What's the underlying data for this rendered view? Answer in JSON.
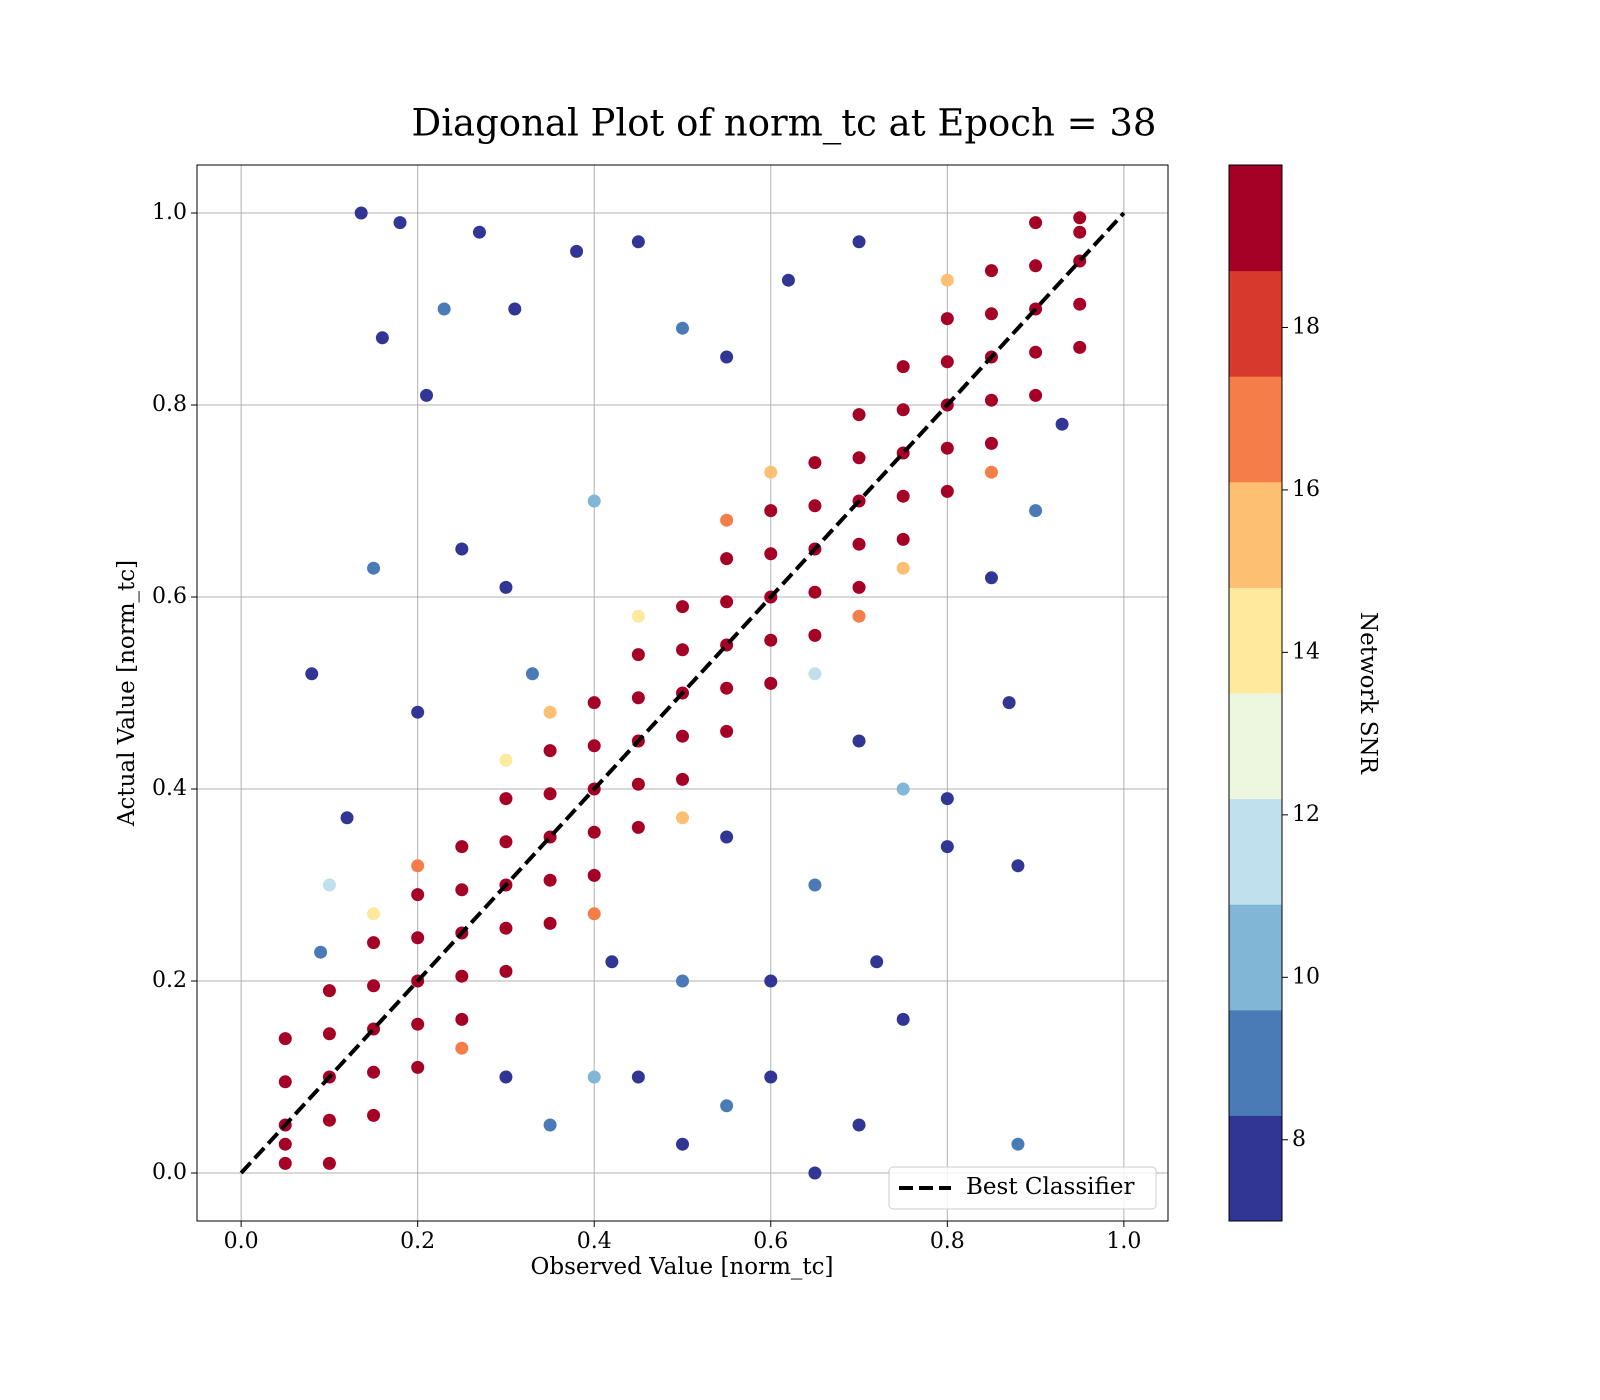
{
  "chart_data": {
    "type": "scatter",
    "title": "Diagonal Plot of norm_tc at Epoch = 38",
    "xlabel": "Observed Value [norm_tc]",
    "ylabel": "Actual Value [norm_tc]",
    "xlim": [
      -0.05,
      1.05
    ],
    "ylim": [
      -0.05,
      1.05
    ],
    "xticks": [
      {
        "value": 0,
        "label": "0.0"
      },
      {
        "value": 0.2,
        "label": "0.2"
      },
      {
        "value": 0.4,
        "label": "0.4"
      },
      {
        "value": 0.6,
        "label": "0.6"
      },
      {
        "value": 0.8,
        "label": "0.8"
      },
      {
        "value": 1,
        "label": "1.0"
      }
    ],
    "yticks": [
      {
        "value": 0,
        "label": "0.0"
      },
      {
        "value": 0.2,
        "label": "0.2"
      },
      {
        "value": 0.4,
        "label": "0.4"
      },
      {
        "value": 0.6,
        "label": "0.6"
      },
      {
        "value": 0.8,
        "label": "0.8"
      },
      {
        "value": 1,
        "label": "1.0"
      }
    ],
    "grid": true,
    "legend": "lower right",
    "series": [
      {
        "x": [
          0.136,
          0.18,
          0.21,
          0.16,
          0.23,
          0.08,
          0.15,
          0.27,
          0.31,
          0.38,
          0.45,
          0.5,
          0.33,
          0.4,
          0.55,
          0.62,
          0.7,
          0.3,
          0.2,
          0.12,
          0.1,
          0.09,
          0.25,
          0.45,
          0.5,
          0.55,
          0.6,
          0.65,
          0.7,
          0.75,
          0.8,
          0.88,
          0.88,
          0.87,
          0.8,
          0.72,
          0.65,
          0.6,
          0.5,
          0.4,
          0.35,
          0.3,
          0.7,
          0.75,
          0.85,
          0.9,
          0.93,
          0.42,
          0.55
        ],
        "values": [
          1.0,
          0.99,
          0.81,
          0.87,
          0.9,
          0.52,
          0.63,
          0.98,
          0.9,
          0.96,
          0.97,
          0.88,
          0.52,
          0.7,
          0.85,
          0.93,
          0.97,
          0.61,
          0.48,
          0.37,
          0.3,
          0.23,
          0.65,
          0.1,
          0.03,
          0.07,
          0.1,
          0.0,
          0.05,
          0.16,
          0.39,
          0.03,
          0.32,
          0.49,
          0.34,
          0.22,
          0.3,
          0.2,
          0.2,
          0.1,
          0.05,
          0.1,
          0.45,
          0.4,
          0.62,
          0.69,
          0.78,
          0.22,
          0.35
        ],
        "snr": [
          7.5,
          7.5,
          7.5,
          7.5,
          9,
          7.5,
          9,
          7.5,
          7.5,
          7.5,
          7.5,
          9,
          9,
          10.5,
          7.5,
          7.5,
          7.5,
          7.5,
          7.5,
          7.5,
          11.5,
          9,
          7.5,
          7.5,
          7.5,
          9,
          7.5,
          7.5,
          7.5,
          7.5,
          7.5,
          9,
          7.5,
          7.5,
          7.5,
          7.5,
          9,
          7.5,
          9,
          10.5,
          9,
          7.5,
          7.5,
          10.5,
          7.5,
          9,
          7.5,
          7.5,
          7.5
        ]
      },
      {
        "x": [
          0.2,
          0.4,
          0.6,
          0.5,
          0.3,
          0.7,
          0.8,
          0.45,
          0.65,
          0.25,
          0.55,
          0.75,
          0.35,
          0.85,
          0.15
        ],
        "values": [
          0.32,
          0.27,
          0.73,
          0.37,
          0.43,
          0.58,
          0.93,
          0.58,
          0.52,
          0.13,
          0.68,
          0.63,
          0.48,
          0.73,
          0.27
        ],
        "snr": [
          17,
          17,
          16,
          15.5,
          14,
          17,
          15.5,
          13.5,
          12,
          17,
          17,
          15.5,
          16,
          17,
          14
        ]
      },
      {
        "x": [
          0.05,
          0.05,
          0.05,
          0.05,
          0.05,
          0.1,
          0.1,
          0.1,
          0.1,
          0.1,
          0.15,
          0.15,
          0.15,
          0.15,
          0.15,
          0.2,
          0.2,
          0.2,
          0.2,
          0.2,
          0.25,
          0.25,
          0.25,
          0.25,
          0.25,
          0.3,
          0.3,
          0.3,
          0.3,
          0.3,
          0.35,
          0.35,
          0.35,
          0.35,
          0.35,
          0.4,
          0.4,
          0.4,
          0.4,
          0.4,
          0.45,
          0.45,
          0.45,
          0.45,
          0.45,
          0.5,
          0.5,
          0.5,
          0.5,
          0.5,
          0.55,
          0.55,
          0.55,
          0.55,
          0.55,
          0.6,
          0.6,
          0.6,
          0.6,
          0.6,
          0.65,
          0.65,
          0.65,
          0.65,
          0.65,
          0.7,
          0.7,
          0.7,
          0.7,
          0.7,
          0.75,
          0.75,
          0.75,
          0.75,
          0.75,
          0.8,
          0.8,
          0.8,
          0.8,
          0.8,
          0.85,
          0.85,
          0.85,
          0.85,
          0.85,
          0.9,
          0.9,
          0.9,
          0.9,
          0.9,
          0.95,
          0.95,
          0.95,
          0.95,
          0.95
        ],
        "values": [
          0.01,
          0.03,
          0.05,
          0.095,
          0.14,
          0.01,
          0.055,
          0.1,
          0.145,
          0.19,
          0.06,
          0.105,
          0.15,
          0.195,
          0.24,
          0.11,
          0.155,
          0.2,
          0.245,
          0.29,
          0.16,
          0.205,
          0.25,
          0.295,
          0.34,
          0.21,
          0.255,
          0.3,
          0.345,
          0.39,
          0.26,
          0.305,
          0.35,
          0.395,
          0.44,
          0.31,
          0.355,
          0.4,
          0.445,
          0.49,
          0.36,
          0.405,
          0.45,
          0.495,
          0.54,
          0.41,
          0.455,
          0.5,
          0.545,
          0.59,
          0.46,
          0.505,
          0.55,
          0.595,
          0.64,
          0.51,
          0.555,
          0.6,
          0.645,
          0.69,
          0.56,
          0.605,
          0.65,
          0.695,
          0.74,
          0.61,
          0.655,
          0.7,
          0.745,
          0.79,
          0.66,
          0.705,
          0.75,
          0.795,
          0.84,
          0.71,
          0.755,
          0.8,
          0.845,
          0.89,
          0.76,
          0.805,
          0.85,
          0.895,
          0.94,
          0.81,
          0.855,
          0.9,
          0.945,
          0.99,
          0.86,
          0.905,
          0.95,
          0.98,
          0.995
        ],
        "snr": [
          19.5,
          19.5,
          19.5,
          19.5,
          19.5,
          19.5,
          19.5,
          19.5,
          19.5,
          19.5,
          19.5,
          19.5,
          19.5,
          19.5,
          19.5,
          19.5,
          19.5,
          19.5,
          19.5,
          19.5,
          19.5,
          19.5,
          19.5,
          19.5,
          19.5,
          19.5,
          19.5,
          19.5,
          19.5,
          19.5,
          19.5,
          19.5,
          19.5,
          19.5,
          19.5,
          19.5,
          19.5,
          19.5,
          19.5,
          19.5,
          19.5,
          19.5,
          19.5,
          19.5,
          19.5,
          19.5,
          19.5,
          19.5,
          19.5,
          19.5,
          19.5,
          19.5,
          19.5,
          19.5,
          19.5,
          19.5,
          19.5,
          19.5,
          19.5,
          19.5,
          19.5,
          19.5,
          19.5,
          19.5,
          19.5,
          19.5,
          19.5,
          19.5,
          19.5,
          19.5,
          19.5,
          19.5,
          19.5,
          19.5,
          19.5,
          19.5,
          19.5,
          19.5,
          19.5,
          19.5,
          19.5,
          19.5,
          19.5,
          19.5,
          19.5,
          19.5,
          19.5,
          19.5,
          19.5,
          19.5,
          19.5,
          19.5,
          19.5,
          19.5,
          19.5
        ]
      }
    ],
    "reference_line": {
      "name": "Best Classifier",
      "x": [
        0,
        1
      ],
      "y": [
        0,
        1
      ],
      "color": "#000000",
      "style": "dashed"
    },
    "colorbar": {
      "label": "Network SNR",
      "lim": [
        7,
        20
      ],
      "ticks": [
        8,
        10,
        12,
        14,
        16,
        18
      ],
      "colors": [
        "#313695",
        "#4a7bb7",
        "#82b6d6",
        "#bfe0ec",
        "#edf6df",
        "#fee99d",
        "#fdbf71",
        "#f57d4a",
        "#d73a2d",
        "#a50026"
      ]
    }
  }
}
